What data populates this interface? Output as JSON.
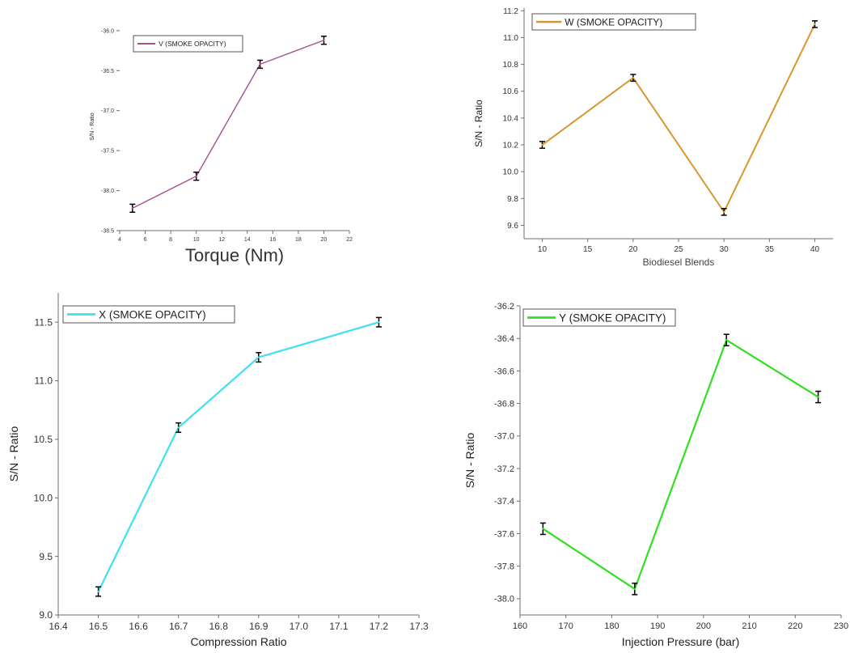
{
  "chart_data": [
    {
      "id": "V",
      "type": "line",
      "legend": "V (SMOKE OPACITY)",
      "legend_position": "top-left",
      "xlabel": "Torque (Nm)",
      "ylabel": "S/N - Ratio",
      "xlim": [
        4,
        22
      ],
      "ylim": [
        -38.5,
        -35.9
      ],
      "xticks": [
        4,
        6,
        8,
        10,
        12,
        14,
        16,
        18,
        20,
        22
      ],
      "yticks": [
        -38.5,
        -38.0,
        -37.5,
        -37.0,
        -36.5,
        -36.0
      ],
      "ytick_labels": [
        "-38.5",
        "-38.0",
        "-37.5",
        "-37.0",
        "-36.5",
        "-36.0"
      ],
      "color": "#a0528f",
      "x": [
        5,
        10,
        15,
        20
      ],
      "y": [
        -38.22,
        -37.82,
        -36.42,
        -36.12
      ],
      "error": 0.05
    },
    {
      "id": "W",
      "type": "line",
      "legend": "W (SMOKE OPACITY)",
      "legend_position": "top-left",
      "xlabel": "Biodiesel Blends",
      "ylabel": "S/N - Ratio",
      "xlim": [
        8,
        42
      ],
      "ylim": [
        9.5,
        11.22
      ],
      "xticks": [
        10,
        15,
        20,
        25,
        30,
        35,
        40
      ],
      "yticks": [
        9.6,
        9.8,
        10.0,
        10.2,
        10.4,
        10.6,
        10.8,
        11.0,
        11.2
      ],
      "ytick_labels": [
        "9.6",
        "9.8",
        "10.0",
        "10.2",
        "10.4",
        "10.6",
        "10.8",
        "11.0",
        "11.2"
      ],
      "color": "#d8962e",
      "x": [
        10,
        20,
        30,
        40
      ],
      "y": [
        10.2,
        10.7,
        9.7,
        11.1
      ],
      "error": 0.025
    },
    {
      "id": "X",
      "type": "line",
      "legend": "X (SMOKE OPACITY)",
      "legend_position": "top-left",
      "xlabel": "Compression Ratio",
      "ylabel": "S/N - Ratio",
      "xlim": [
        16.4,
        17.3
      ],
      "ylim": [
        9.0,
        11.75
      ],
      "xticks": [
        16.4,
        16.5,
        16.6,
        16.7,
        16.8,
        16.9,
        17.0,
        17.1,
        17.2,
        17.3
      ],
      "xtick_labels": [
        "16.4",
        "16.5",
        "16.6",
        "16.7",
        "16.8",
        "16.9",
        "17.0",
        "17.1",
        "17.2",
        "17.3"
      ],
      "yticks": [
        9.0,
        9.5,
        10.0,
        10.5,
        11.0,
        11.5
      ],
      "ytick_labels": [
        "9.0",
        "9.5",
        "10.0",
        "10.5",
        "11.0",
        "11.5"
      ],
      "color": "#3fe0f0",
      "x": [
        16.5,
        16.7,
        16.9,
        17.2
      ],
      "y": [
        9.2,
        10.6,
        11.2,
        11.5
      ],
      "error": 0.04
    },
    {
      "id": "Y",
      "type": "line",
      "legend": "Y (SMOKE OPACITY)",
      "legend_position": "top-left",
      "xlabel": "Injection Pressure (bar)",
      "ylabel": "S/N - Ratio",
      "xlim": [
        160,
        230
      ],
      "ylim": [
        -38.1,
        -36.2
      ],
      "xticks": [
        160,
        170,
        180,
        190,
        200,
        210,
        220,
        230
      ],
      "yticks": [
        -38.0,
        -37.8,
        -37.6,
        -37.4,
        -37.2,
        -37.0,
        -36.8,
        -36.6,
        -36.4,
        -36.2
      ],
      "ytick_labels": [
        "-38.0",
        "-37.8",
        "-37.6",
        "-37.4",
        "-37.2",
        "-37.0",
        "-36.8",
        "-36.6",
        "-36.4",
        "-36.2"
      ],
      "color": "#2fe020",
      "x": [
        165,
        185,
        205,
        225
      ],
      "y": [
        -37.57,
        -37.94,
        -36.41,
        -36.76
      ],
      "error": 0.035
    }
  ]
}
